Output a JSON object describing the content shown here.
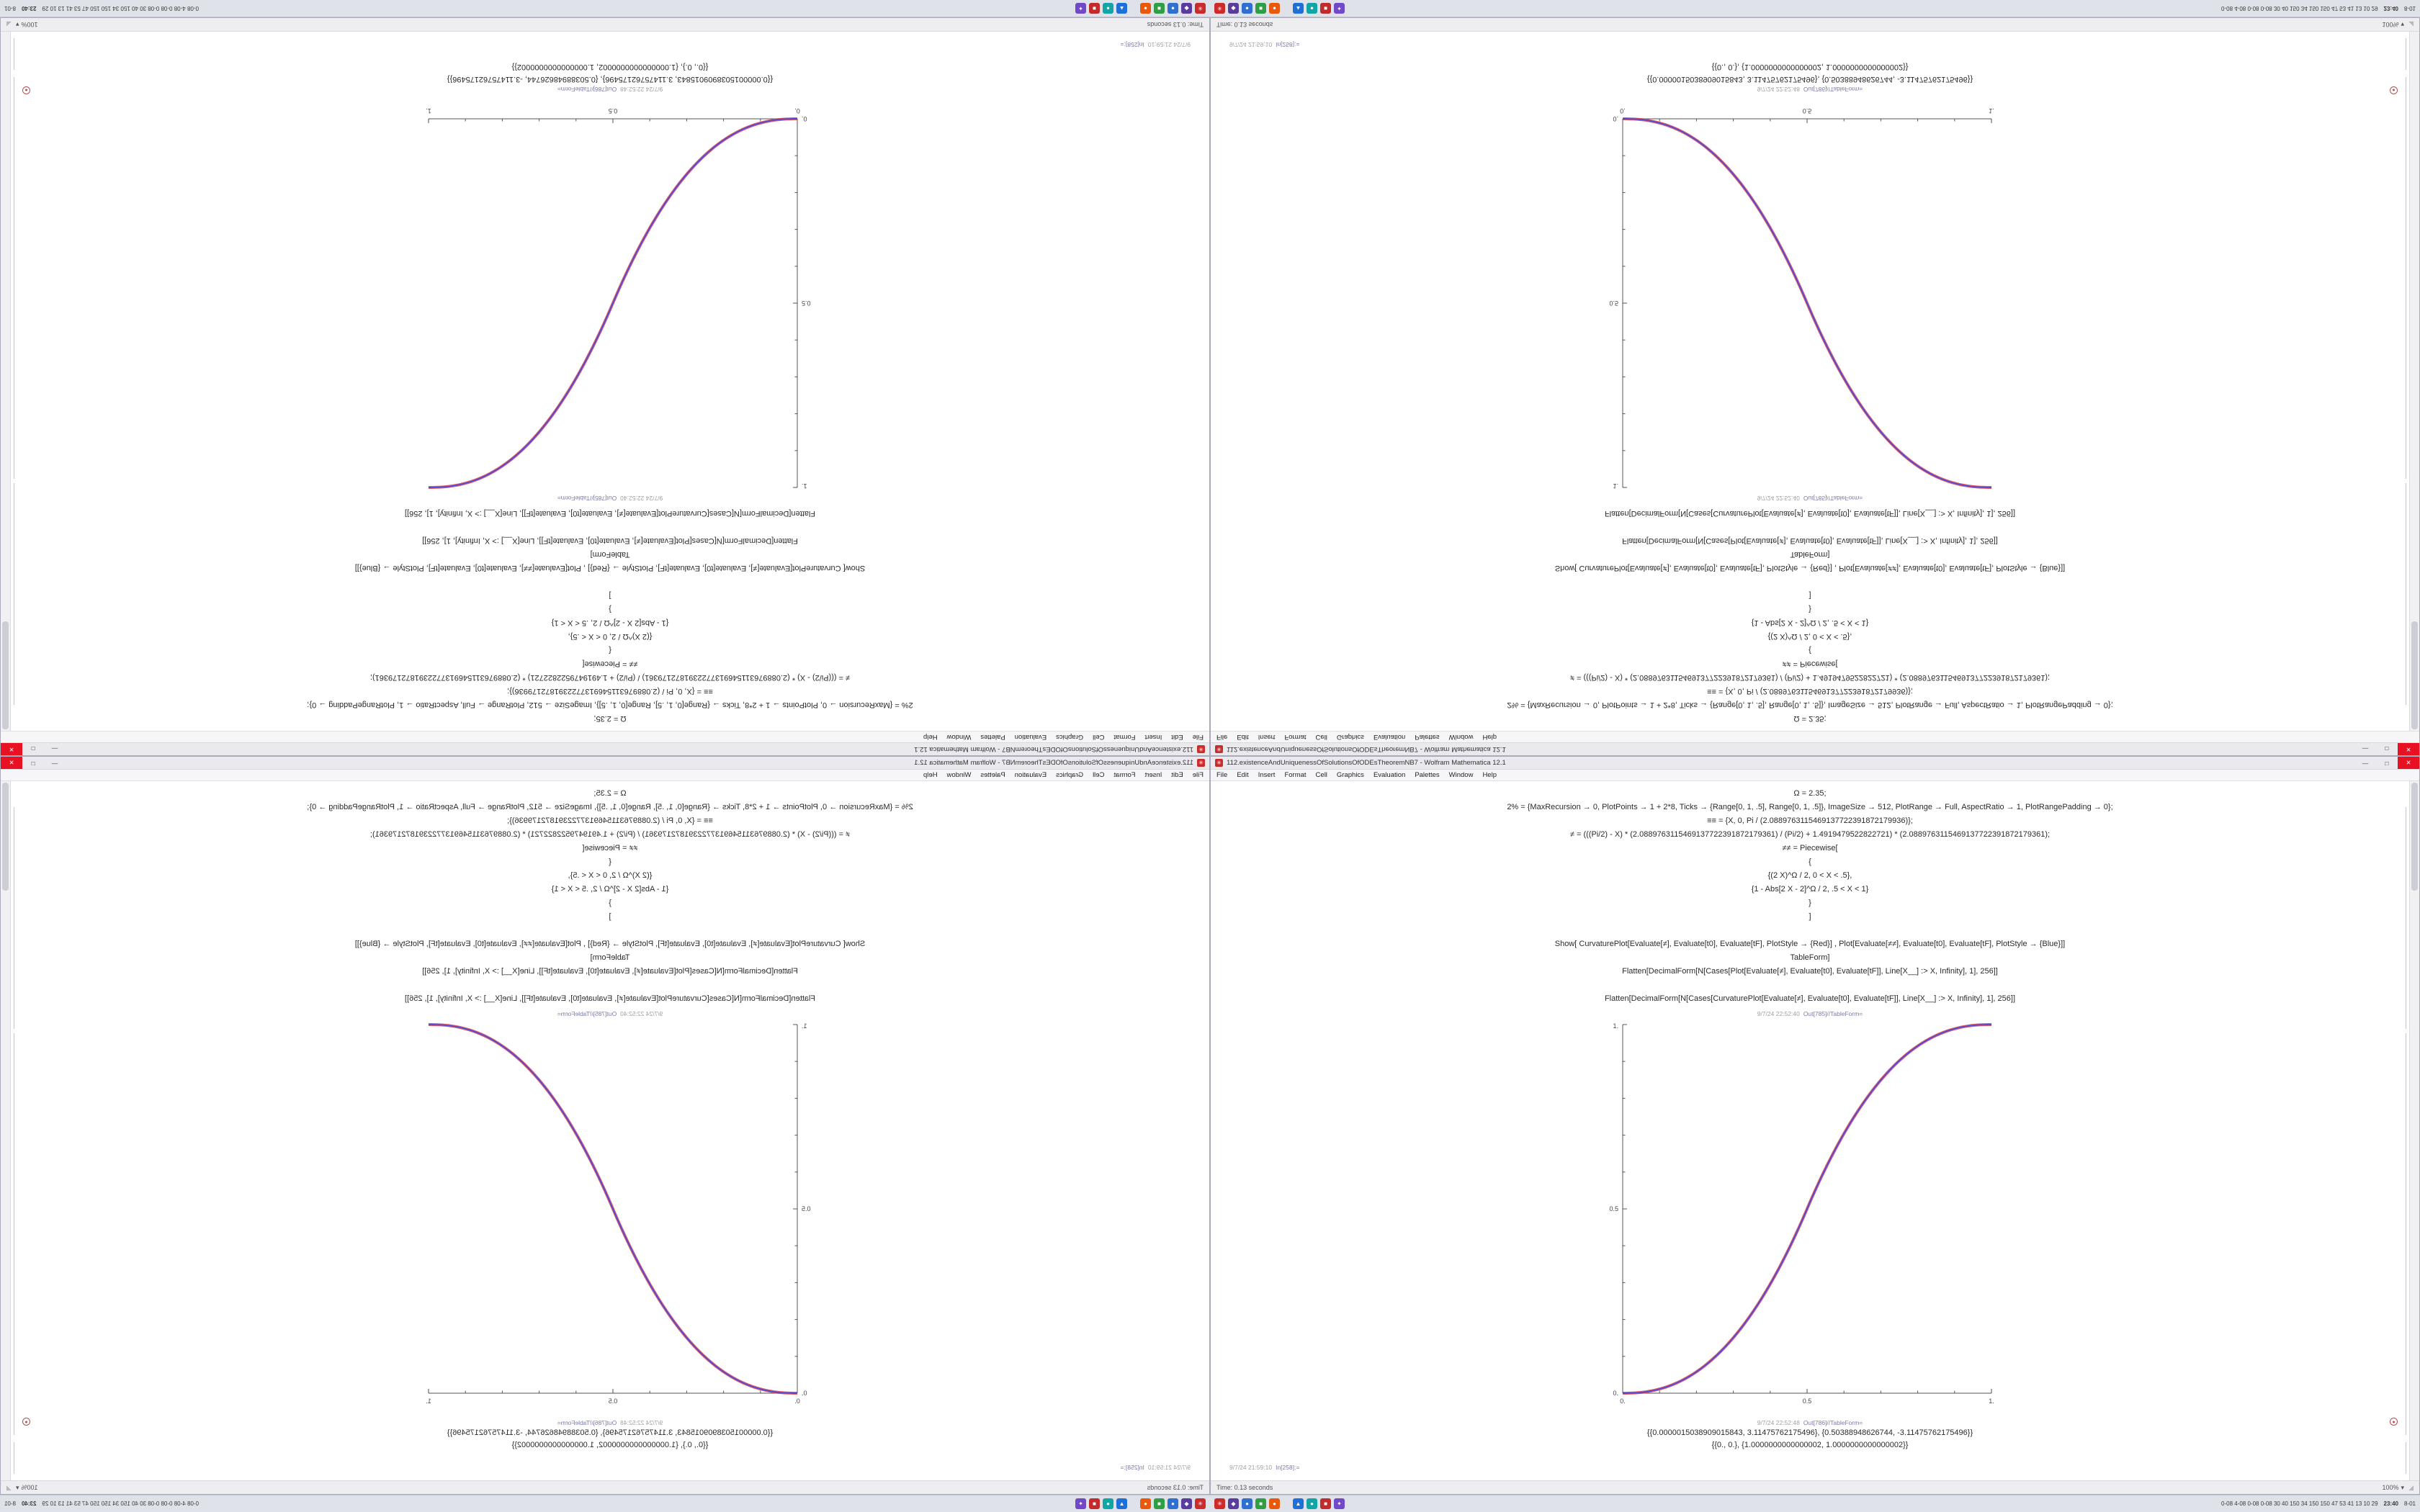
{
  "desktop": {
    "window": {
      "title": "112.existenceAndUniquenessOfSolutionsOfODEsTheoremNB7 - Wolfram Mathematica 12.1",
      "app_icon_glyph": "✳",
      "controls": {
        "minimize": "—",
        "maximize": "□",
        "close": "✕"
      },
      "menu": [
        "File",
        "Edit",
        "Insert",
        "Format",
        "Cell",
        "Graphics",
        "Evaluation",
        "Palettes",
        "Window",
        "Help"
      ],
      "cells": {
        "code_lines": [
          "Ω = 2.35;",
          "2% = {MaxRecursion → 0, PlotPoints → 1 + 2*8, Ticks → {Range[0, 1, .5], Range[0, 1, .5]}, ImageSize → 512, PlotRange → Full, AspectRatio → 1, PlotRangePadding → 0};",
          "≡≡ = {X, 0, Pi / (2.0889763115469137722391872179936)};",
          "≠ = (((Pi/2) - X) * (2.0889763115469137722391872179361) / (Pi/2) + 1.4919479522822721) * (2.0889763115469137722391872179361);",
          "≠≠ = Piecewise[",
          "{",
          "{(2 X)^Ω / 2, 0 < X < .5},",
          "{1 - Abs[2 X - 2]^Ω / 2, .5 < X < 1}",
          "}",
          "]",
          "",
          "Show[ CurvaturePlot[Evaluate[≠], Evaluate[t0], Evaluate[tF], PlotStyle → {Red}] , Plot[Evaluate[≠≠], Evaluate[t0], Evaluate[tF], PlotStyle → {Blue}]]",
          "TableForm]",
          "Flatten[DecimalForm[N[Cases[Plot[Evaluate[≠], Evaluate[t0], Evaluate[tF]], Line[X__] :> X, Infinity], 1], 256]]",
          "",
          "Flatten[DecimalForm[N[Cases[CurvaturePlot[Evaluate[≠], Evaluate[t0], Evaluate[tF]], Line[X__] :> X, Infinity], 1], 256]]"
        ],
        "out1": {
          "time": "9/7/24 22:52:40",
          "label": "Out[785]//TableForm="
        },
        "out2": {
          "time": "9/7/24 22:52:48",
          "label": "Out[786]//TableForm="
        },
        "result1": "{{0.0000015038909015843, 3.11475762175496}, {0.50388948626744, -3.11475762175496}}",
        "result2": "{{0., 0.}, {1.0000000000000002, 1.0000000000000002}}",
        "next_in": {
          "time": "9/7/24 21:59:10",
          "label": "In[258]:="
        }
      },
      "status": {
        "time_text": "Time: 0.13 seconds",
        "zoom": "100%",
        "zoom_arrow": "▾",
        "grip": "◢"
      },
      "margin_marker_glyph": "●"
    },
    "taskbar": {
      "icons": [
        {
          "color": "#cc2b2b",
          "glyph": "✳"
        },
        {
          "color": "#5a3b9e",
          "glyph": "◆"
        },
        {
          "color": "#2f6fd0",
          "glyph": "●"
        },
        {
          "color": "#2f9e44",
          "glyph": "■"
        },
        {
          "color": "#e8590c",
          "glyph": "●"
        },
        {
          "color": "#1f6fd8",
          "glyph": "▲"
        },
        {
          "color": "#12a5a5",
          "glyph": "●"
        },
        {
          "color": "#c22b2b",
          "glyph": "■"
        },
        {
          "color": "#7048c8",
          "glyph": "✦"
        }
      ]
    },
    "tray": {
      "stats": "0-08 4-08 0-08 0-08  30 40 150 34 150 150 47 53 41 13 10 29",
      "clock": "23:40",
      "date": "8-01"
    }
  },
  "chart_data": {
    "type": "line",
    "title": "",
    "xlabel": "",
    "ylabel": "",
    "xlim": [
      0,
      1
    ],
    "ylim": [
      0,
      1
    ],
    "grid": false,
    "legend": "none",
    "xtick_labels": [
      "0.",
      "0.5",
      "1."
    ],
    "ytick_labels": [
      "0.",
      "0.5",
      "1."
    ],
    "exponent": 2.35,
    "x": [
      0,
      0.1,
      0.2,
      0.3,
      0.4,
      0.5,
      0.6,
      0.7,
      0.8,
      0.9,
      1.0
    ],
    "series": [
      {
        "name": "CurvaturePlot (Red)",
        "color": "#e03838",
        "values": [
          0,
          0.0114,
          0.058,
          0.1505,
          0.296,
          0.5,
          0.704,
          0.8495,
          0.942,
          0.9886,
          1.0
        ]
      },
      {
        "name": "Plot (Blue)",
        "color": "#4848e0",
        "values": [
          0,
          0.0114,
          0.058,
          0.1505,
          0.296,
          0.5,
          0.704,
          0.8495,
          0.942,
          0.9886,
          1.0
        ]
      }
    ],
    "note": "Two overlapping sigmoid curves (red+blue render as purple). Same plot appears in all four quadrants: top-left rotated 180°, top-right flipped vertically, bottom-left flipped horizontally, bottom-right normal."
  }
}
